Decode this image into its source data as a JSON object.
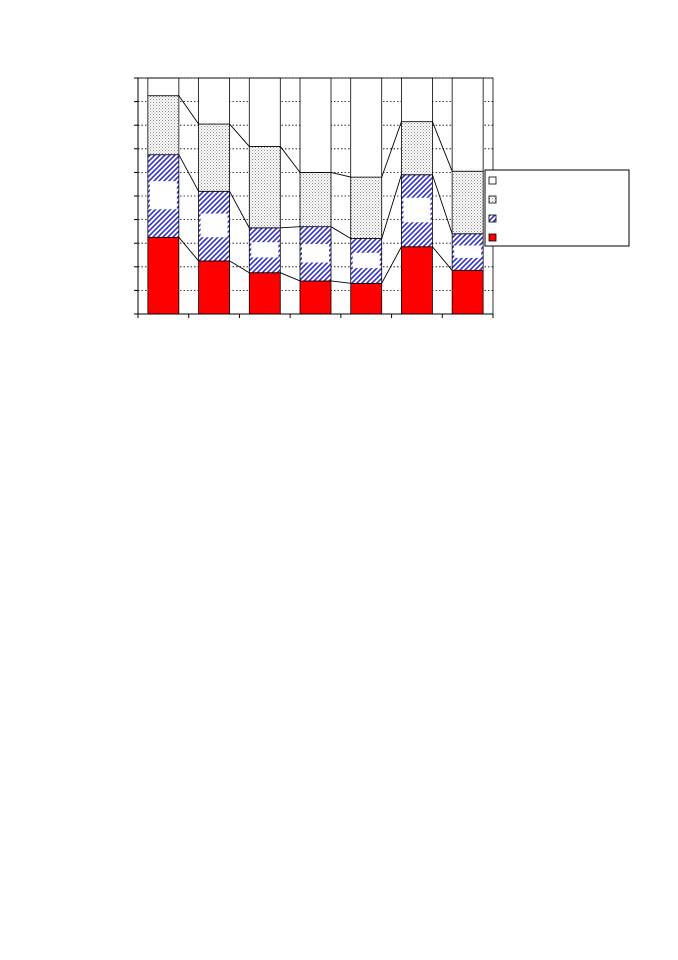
{
  "chart_data": {
    "type": "bar",
    "stacked": true,
    "percent_stacked": true,
    "categories": [
      "",
      "",
      "",
      "",
      "",
      "",
      ""
    ],
    "ylim": [
      0,
      100
    ],
    "ytick_step": 10,
    "grid": "horizontal-dotted",
    "legend_position": "right",
    "series": [
      {
        "values": [
          32.5,
          22.5,
          17.5,
          14,
          13,
          28.5,
          18.5
        ],
        "color": "#ff0000",
        "pattern": "solid"
      },
      {
        "values": [
          35,
          29.5,
          19,
          23,
          19,
          30.5,
          15.5
        ],
        "color": "#3333cc",
        "pattern": "diagonal-hatch"
      },
      {
        "values": [
          25,
          28.5,
          34.5,
          23,
          26,
          22.5,
          26.5
        ],
        "color": "#c0c0c0",
        "pattern": "dotted"
      },
      {
        "values": [
          7.5,
          19.5,
          29,
          40,
          42,
          18.5,
          39.5
        ],
        "color": "#ffffff",
        "pattern": "none"
      }
    ],
    "legend_order": [
      3,
      2,
      1,
      0
    ]
  }
}
